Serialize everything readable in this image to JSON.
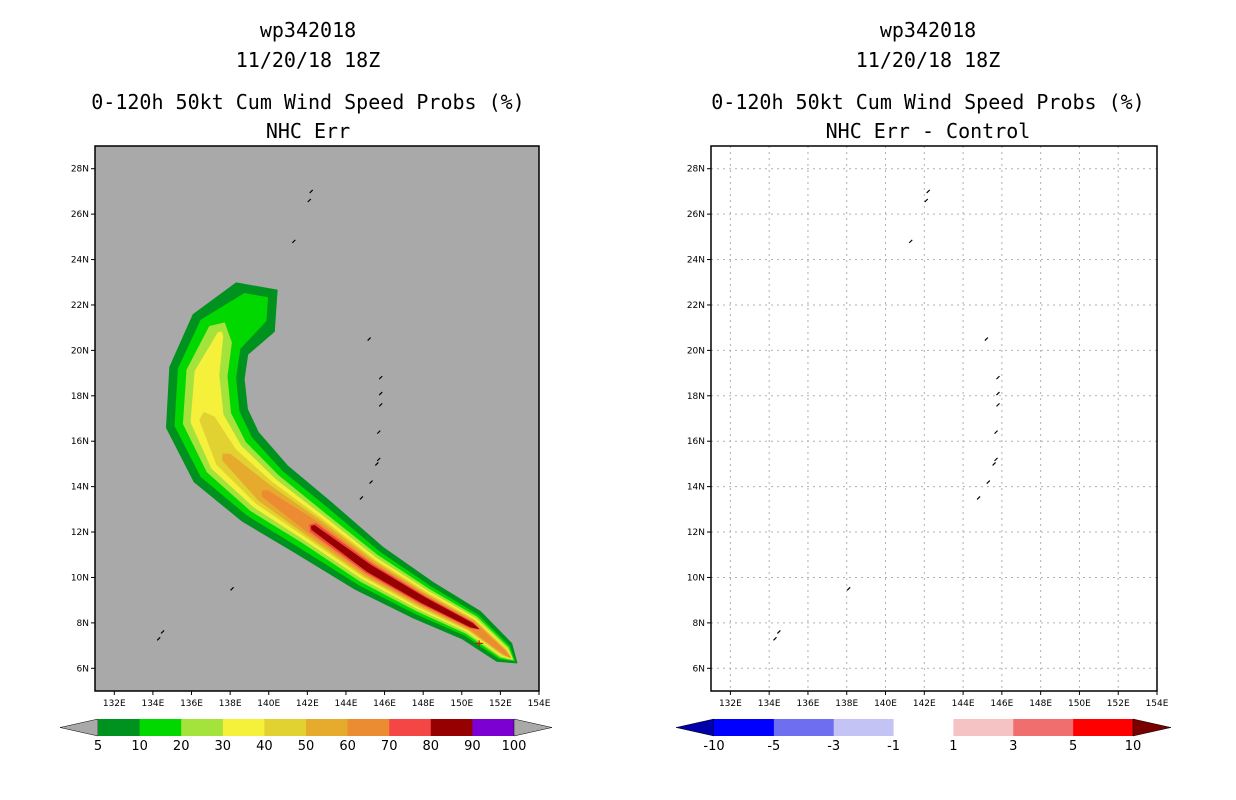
{
  "chart_data": [
    {
      "type": "heatmap",
      "storm_id": "wp342018",
      "datetime": "11/20/18 18Z",
      "title": "0-120h 50kt Cum Wind Speed Probs (%)",
      "subtitle": "NHC Err",
      "x_ticks": [
        "132E",
        "134E",
        "136E",
        "138E",
        "140E",
        "142E",
        "144E",
        "146E",
        "148E",
        "150E",
        "152E",
        "154E"
      ],
      "y_ticks": [
        "28N",
        "26N",
        "24N",
        "22N",
        "20N",
        "18N",
        "16N",
        "14N",
        "12N",
        "10N",
        "8N",
        "6N"
      ],
      "xlim": [
        131,
        154
      ],
      "ylim": [
        5,
        29
      ],
      "grid": false,
      "background": "#a9a9a9",
      "contour_levels": [
        5,
        10,
        20,
        30,
        40,
        50,
        60,
        70,
        80,
        90,
        100
      ],
      "colorbar_labels": [
        "5",
        "10",
        "20",
        "30",
        "40",
        "50",
        "60",
        "70",
        "80",
        "90",
        "100"
      ],
      "colors": [
        "#00921e",
        "#00d800",
        "#a4e23c",
        "#f5f03a",
        "#e1d232",
        "#e6aa2d",
        "#ec8c32",
        "#f54646",
        "#960000",
        "#7d00d2"
      ],
      "track": [
        [
          139.3,
          21.9
        ],
        [
          137.5,
          20.7
        ],
        [
          136.8,
          19.0
        ],
        [
          136.8,
          17.0
        ],
        [
          137.8,
          15.3
        ],
        [
          139.8,
          13.7
        ],
        [
          142.3,
          12.2
        ],
        [
          145.2,
          10.4
        ],
        [
          148.0,
          9.0
        ],
        [
          150.5,
          7.9
        ],
        [
          152.2,
          6.7
        ]
      ],
      "contours": [
        {
          "level": 5,
          "halfwidth": [
            1.6,
            1.75,
            1.95,
            2.15,
            2.1,
            1.85,
            1.6,
            1.3,
            1.05,
            0.85,
            0.6
          ]
        },
        {
          "level": 10,
          "halfwidth": [
            0.9,
            1.25,
            1.5,
            1.7,
            1.65,
            1.45,
            1.25,
            1.0,
            0.8,
            0.62,
            0.42
          ]
        },
        {
          "level": 20,
          "halfwidth": [
            0.0,
            0.7,
            1.05,
            1.25,
            1.25,
            1.15,
            0.95,
            0.8,
            0.64,
            0.5,
            0.32
          ]
        },
        {
          "level": 30,
          "halfwidth": [
            0.0,
            0.15,
            0.62,
            0.85,
            0.95,
            0.9,
            0.78,
            0.64,
            0.52,
            0.4,
            0.24
          ]
        },
        {
          "level": 40,
          "halfwidth": [
            0.0,
            0.0,
            0.0,
            0.38,
            0.62,
            0.68,
            0.62,
            0.52,
            0.42,
            0.32,
            0.18
          ]
        },
        {
          "level": 50,
          "halfwidth": [
            0.0,
            0.0,
            0.0,
            0.0,
            0.25,
            0.48,
            0.5,
            0.44,
            0.34,
            0.26,
            0.12
          ]
        },
        {
          "level": 60,
          "halfwidth": [
            0.0,
            0.0,
            0.0,
            0.0,
            0.0,
            0.2,
            0.36,
            0.34,
            0.27,
            0.2,
            0.08
          ]
        },
        {
          "level": 70,
          "halfwidth": [
            0.0,
            0.0,
            0.0,
            0.0,
            0.0,
            0.0,
            0.24,
            0.26,
            0.21,
            0.15,
            0.0
          ]
        },
        {
          "level": 80,
          "halfwidth": [
            0.0,
            0.0,
            0.0,
            0.0,
            0.0,
            0.0,
            0.12,
            0.18,
            0.15,
            0.1,
            0.0
          ]
        }
      ],
      "islands": [
        [
          142.2,
          27.0
        ],
        [
          142.1,
          26.6
        ],
        [
          141.3,
          24.8
        ],
        [
          145.2,
          20.5
        ],
        [
          145.8,
          18.8
        ],
        [
          145.8,
          18.1
        ],
        [
          145.8,
          17.6
        ],
        [
          145.7,
          16.4
        ],
        [
          145.7,
          15.2
        ],
        [
          145.6,
          15.0
        ],
        [
          145.3,
          14.2
        ],
        [
          144.8,
          13.5
        ],
        [
          134.5,
          7.6
        ],
        [
          134.3,
          7.3
        ],
        [
          138.1,
          9.5
        ]
      ]
    },
    {
      "type": "heatmap",
      "storm_id": "wp342018",
      "datetime": "11/20/18 18Z",
      "title": "0-120h 50kt Cum Wind Speed Probs (%)",
      "subtitle": "NHC Err - Control",
      "x_ticks": [
        "132E",
        "134E",
        "136E",
        "138E",
        "140E",
        "142E",
        "144E",
        "146E",
        "148E",
        "150E",
        "152E",
        "154E"
      ],
      "y_ticks": [
        "28N",
        "26N",
        "24N",
        "22N",
        "20N",
        "18N",
        "16N",
        "14N",
        "12N",
        "10N",
        "8N",
        "6N"
      ],
      "xlim": [
        131,
        154
      ],
      "ylim": [
        5,
        29
      ],
      "grid": true,
      "background": "#ffffff",
      "colorbar_labels": [
        "-10",
        "-5",
        "-3",
        "-1",
        "1",
        "3",
        "5",
        "10"
      ],
      "colors": [
        "#0000aa",
        "#0000ff",
        "#6e6ef0",
        "#c3c3f5",
        "#ffffff",
        "#f5c3c3",
        "#f06e6e",
        "#ff0000",
        "#780000"
      ],
      "contours": []
    }
  ]
}
